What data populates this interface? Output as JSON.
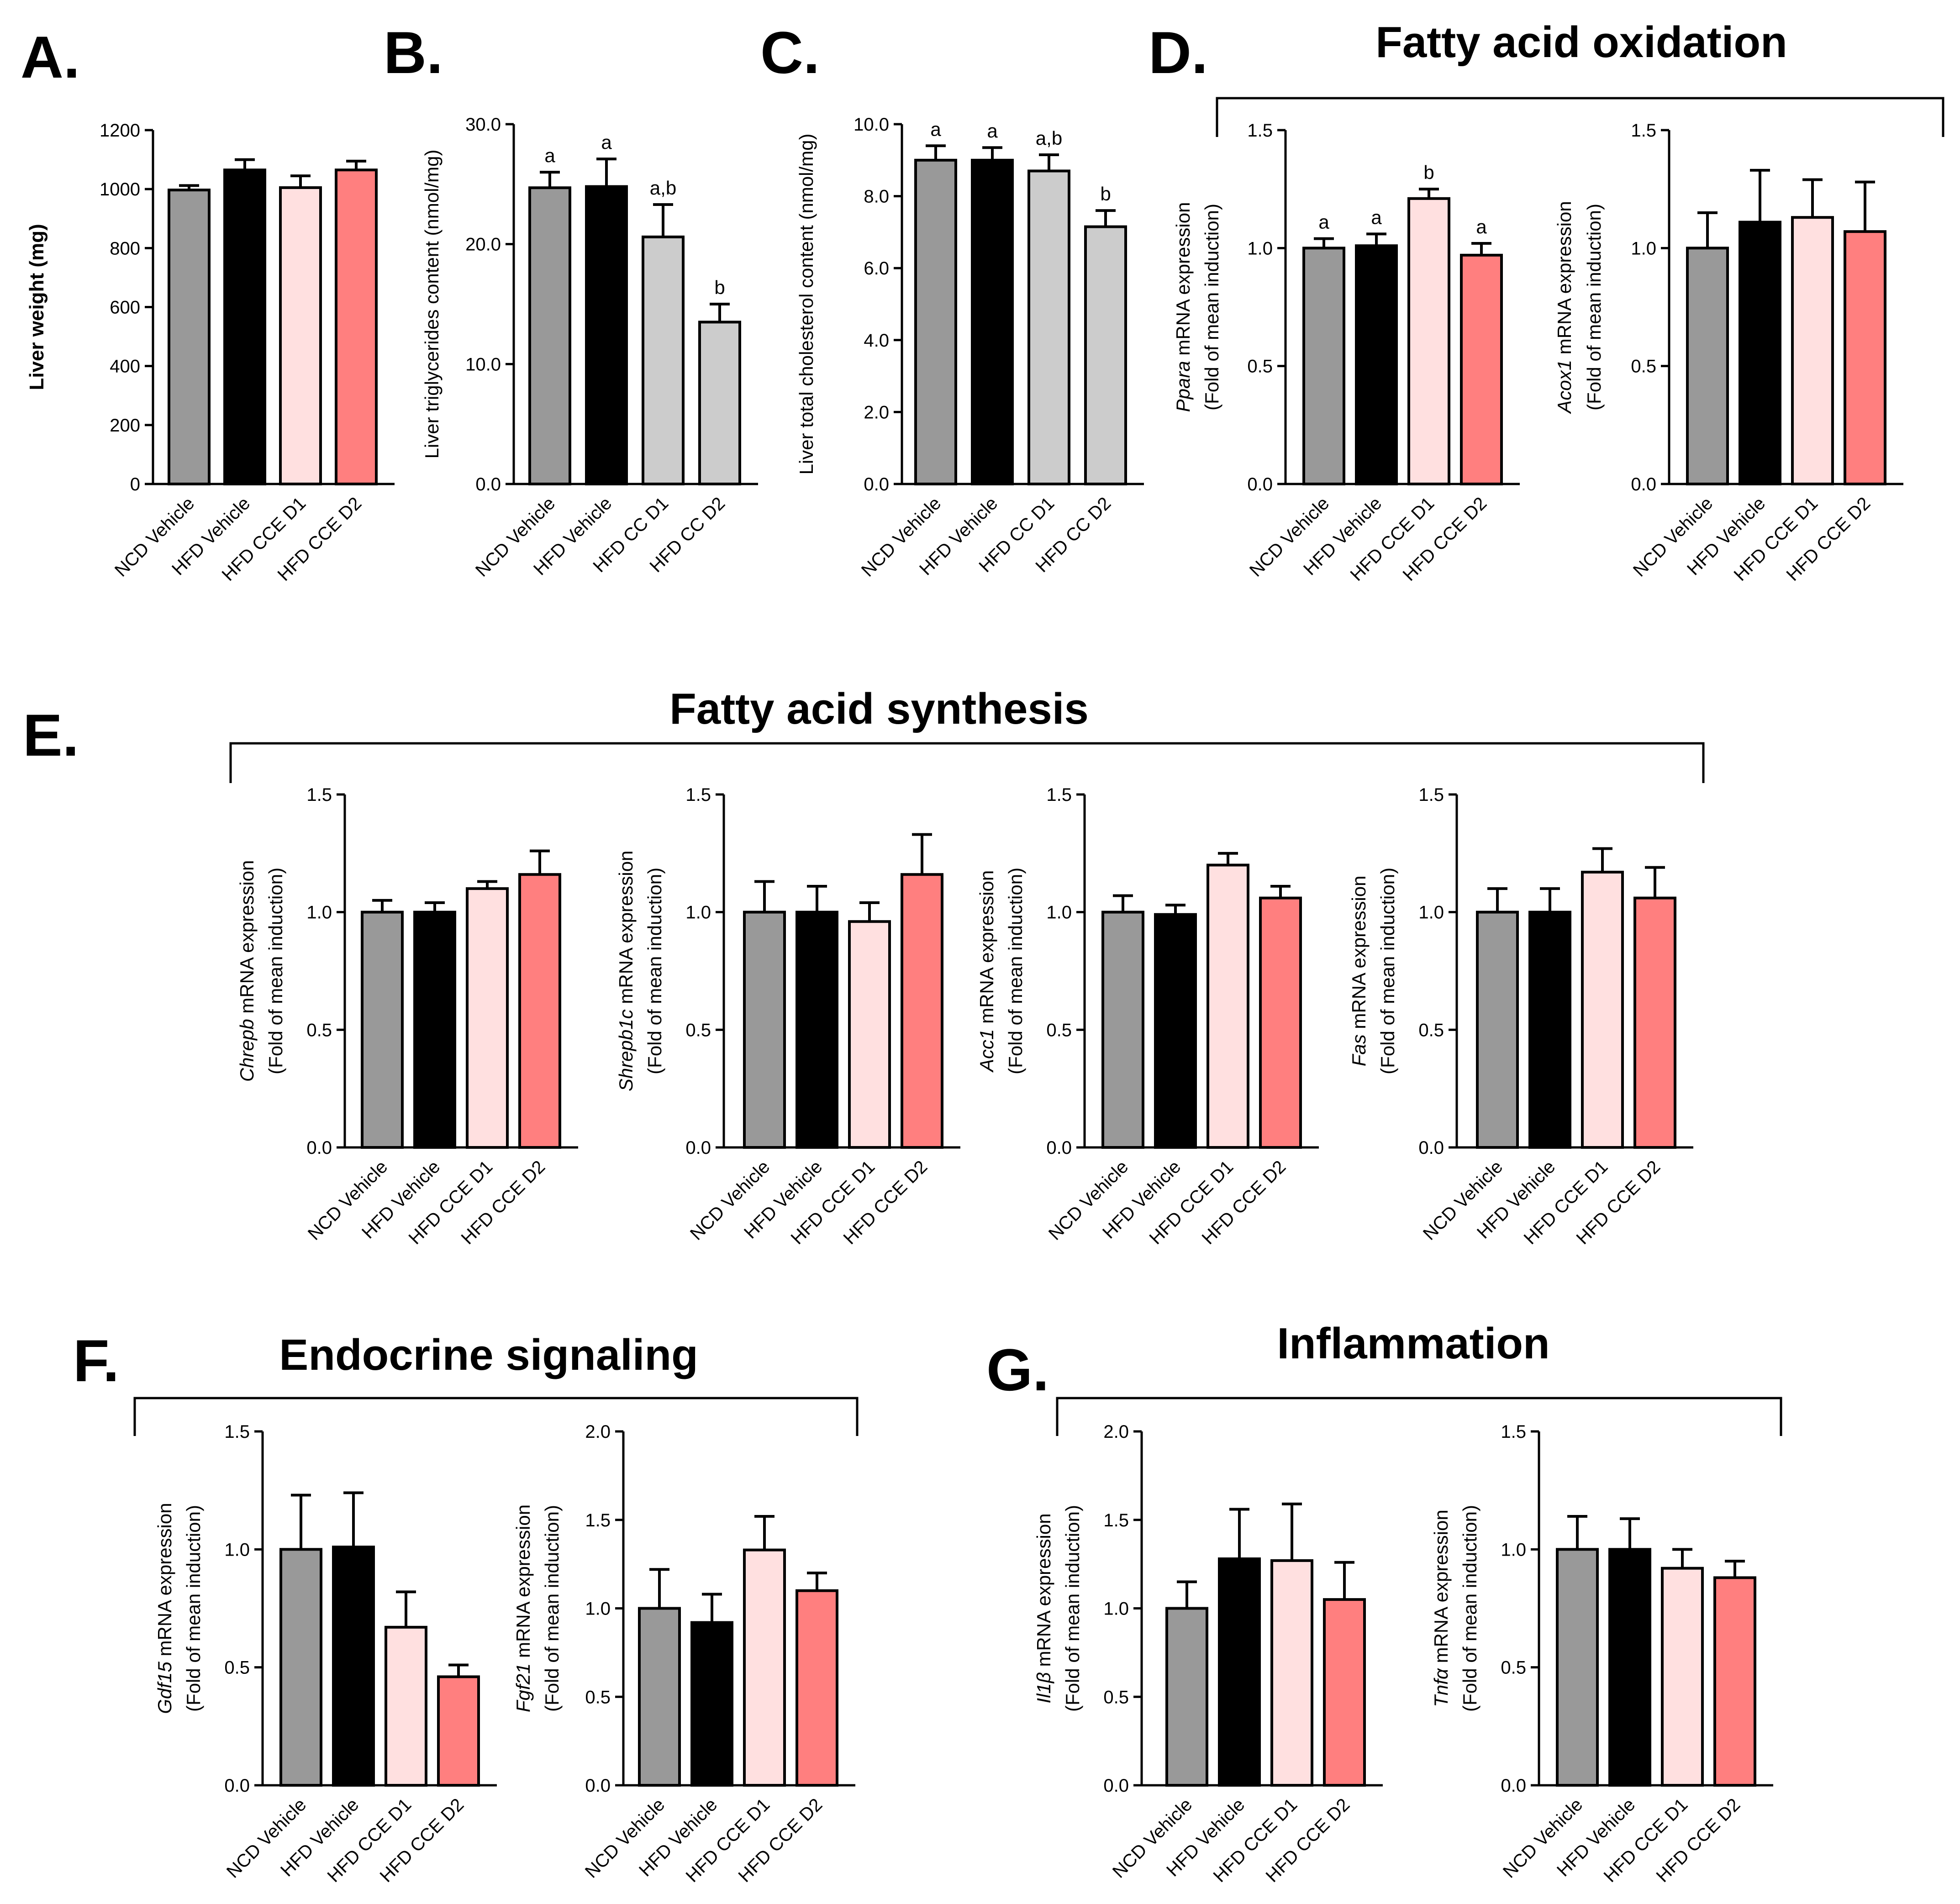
{
  "colors": {
    "NCD Vehicle": "#999999",
    "HFD Vehicle": "#000000",
    "HFD CCE D1": "#ffe0e0",
    "HFD CCE D2": "#ff7f7f"
  },
  "panel_letters": [
    "A.",
    "B.",
    "C.",
    "D.",
    "E.",
    "F.",
    "G."
  ],
  "group_titles": {
    "D": "Fatty acid oxidation",
    "E": "Fatty acid synthesis",
    "F": "Endocrine signaling",
    "G": "Inflammation"
  },
  "y_axis_line2": "(Fold of mean induction)",
  "chart_data": [
    {
      "id": "A",
      "type": "bar",
      "ylabel_main": "Liver weight (mg)",
      "ylabel_style": "bold",
      "categories": [
        "NCD Vehicle",
        "HFD Vehicle",
        "HFD CCE D1",
        "HFD CCE D2"
      ],
      "values": [
        997,
        1065,
        1005,
        1065
      ],
      "errors": [
        15,
        35,
        40,
        30
      ],
      "ylim": [
        0,
        1200
      ],
      "yticks": [
        0,
        200,
        400,
        600,
        800,
        1000,
        1200
      ],
      "ytick_labels": [
        "0",
        "200",
        "400",
        "600",
        "800",
        "1000",
        "1200"
      ],
      "sig_labels": [
        "",
        "",
        "",
        ""
      ]
    },
    {
      "id": "B",
      "type": "bar",
      "ylabel_main": "Liver triglycerides content (nmol/mg)",
      "ylabel_style": "plain",
      "categories": [
        "NCD Vehicle",
        "HFD Vehicle",
        "HFD CC D1",
        "HFD CC D2"
      ],
      "values": [
        24.7,
        24.8,
        20.6,
        13.5
      ],
      "errors": [
        1.3,
        2.3,
        2.7,
        1.5
      ],
      "ylim": [
        0,
        30
      ],
      "yticks": [
        0,
        10,
        20,
        30
      ],
      "ytick_labels": [
        "0.0",
        "10.0",
        "20.0",
        "30.0"
      ],
      "sig_labels": [
        "a",
        "a",
        "a,b",
        "b"
      ]
    },
    {
      "id": "C",
      "type": "bar",
      "ylabel_main": "Liver total cholesterol content (nmol/mg)",
      "ylabel_style": "plain",
      "categories": [
        "NCD Vehicle",
        "HFD Vehicle",
        "HFD CC D1",
        "HFD CC D2"
      ],
      "values": [
        9.0,
        9.0,
        8.7,
        7.15
      ],
      "errors": [
        0.4,
        0.35,
        0.45,
        0.45
      ],
      "ylim": [
        0,
        10
      ],
      "yticks": [
        0,
        2,
        4,
        6,
        8,
        10
      ],
      "ytick_labels": [
        "0.0",
        "2.0",
        "4.0",
        "6.0",
        "8.0",
        "10.0"
      ],
      "sig_labels": [
        "a",
        "a",
        "a,b",
        "b"
      ]
    },
    {
      "id": "D1",
      "type": "bar",
      "gene": "Ppara",
      "ylabel_rest": " mRNA expression",
      "ylabel_style": "gene",
      "categories": [
        "NCD Vehicle",
        "HFD Vehicle",
        "HFD CCE D1",
        "HFD CCE D2"
      ],
      "values": [
        1.0,
        1.01,
        1.21,
        0.97
      ],
      "errors": [
        0.04,
        0.05,
        0.04,
        0.05
      ],
      "ylim": [
        0,
        1.5
      ],
      "yticks": [
        0,
        0.5,
        1.0,
        1.5
      ],
      "ytick_labels": [
        "0.0",
        "0.5",
        "1.0",
        "1.5"
      ],
      "sig_labels": [
        "a",
        "a",
        "b",
        "a"
      ]
    },
    {
      "id": "D2",
      "type": "bar",
      "gene": "Acox1",
      "ylabel_rest": " mRNA expression",
      "ylabel_style": "gene",
      "categories": [
        "NCD Vehicle",
        "HFD Vehicle",
        "HFD CCE D1",
        "HFD CCE D2"
      ],
      "values": [
        1.0,
        1.11,
        1.13,
        1.07
      ],
      "errors": [
        0.15,
        0.22,
        0.16,
        0.21
      ],
      "ylim": [
        0,
        1.5
      ],
      "yticks": [
        0,
        0.5,
        1.0,
        1.5
      ],
      "ytick_labels": [
        "0.0",
        "0.5",
        "1.0",
        "1.5"
      ],
      "sig_labels": [
        "",
        "",
        "",
        ""
      ]
    },
    {
      "id": "E1",
      "type": "bar",
      "gene": "Chrepb",
      "ylabel_rest": " mRNA expression",
      "ylabel_style": "gene",
      "categories": [
        "NCD Vehicle",
        "HFD Vehicle",
        "HFD CCE D1",
        "HFD CCE D2"
      ],
      "values": [
        1.0,
        1.0,
        1.1,
        1.16
      ],
      "errors": [
        0.05,
        0.04,
        0.03,
        0.1
      ],
      "ylim": [
        0,
        1.5
      ],
      "yticks": [
        0,
        0.5,
        1.0,
        1.5
      ],
      "ytick_labels": [
        "0.0",
        "0.5",
        "1.0",
        "1.5"
      ],
      "sig_labels": [
        "",
        "",
        "",
        ""
      ]
    },
    {
      "id": "E2",
      "type": "bar",
      "gene": "Shrepb1c",
      "ylabel_rest": " mRNA expression",
      "ylabel_style": "gene",
      "categories": [
        "NCD Vehicle",
        "HFD Vehicle",
        "HFD CCE D1",
        "HFD CCE D2"
      ],
      "values": [
        1.0,
        1.0,
        0.96,
        1.16
      ],
      "errors": [
        0.13,
        0.11,
        0.08,
        0.17
      ],
      "ylim": [
        0,
        1.5
      ],
      "yticks": [
        0,
        0.5,
        1.0,
        1.5
      ],
      "ytick_labels": [
        "0.0",
        "0.5",
        "1.0",
        "1.5"
      ],
      "sig_labels": [
        "",
        "",
        "",
        ""
      ]
    },
    {
      "id": "E3",
      "type": "bar",
      "gene": "Acc1",
      "ylabel_rest": " mRNA expression",
      "ylabel_style": "gene",
      "categories": [
        "NCD Vehicle",
        "HFD Vehicle",
        "HFD CCE D1",
        "HFD CCE D2"
      ],
      "values": [
        1.0,
        0.99,
        1.2,
        1.06
      ],
      "errors": [
        0.07,
        0.04,
        0.05,
        0.05
      ],
      "ylim": [
        0,
        1.5
      ],
      "yticks": [
        0,
        0.5,
        1.0,
        1.5
      ],
      "ytick_labels": [
        "0.0",
        "0.5",
        "1.0",
        "1.5"
      ],
      "sig_labels": [
        "",
        "",
        "",
        ""
      ]
    },
    {
      "id": "E4",
      "type": "bar",
      "gene": "Fas",
      "ylabel_rest": " mRNA expression",
      "ylabel_style": "gene",
      "categories": [
        "NCD Vehicle",
        "HFD Vehicle",
        "HFD CCE D1",
        "HFD CCE D2"
      ],
      "values": [
        1.0,
        1.0,
        1.17,
        1.06
      ],
      "errors": [
        0.1,
        0.1,
        0.1,
        0.13
      ],
      "ylim": [
        0,
        1.5
      ],
      "yticks": [
        0,
        0.5,
        1.0,
        1.5
      ],
      "ytick_labels": [
        "0.0",
        "0.5",
        "1.0",
        "1.5"
      ],
      "sig_labels": [
        "",
        "",
        "",
        ""
      ]
    },
    {
      "id": "F1",
      "type": "bar",
      "gene": "Gdf15",
      "ylabel_rest": " mRNA expression",
      "ylabel_style": "gene",
      "categories": [
        "NCD Vehicle",
        "HFD Vehicle",
        "HFD CCE D1",
        "HFD CCE D2"
      ],
      "values": [
        1.0,
        1.01,
        0.67,
        0.46
      ],
      "errors": [
        0.23,
        0.23,
        0.15,
        0.05
      ],
      "ylim": [
        0,
        1.5
      ],
      "yticks": [
        0,
        0.5,
        1.0,
        1.5
      ],
      "ytick_labels": [
        "0.0",
        "0.5",
        "1.0",
        "1.5"
      ],
      "sig_labels": [
        "",
        "",
        "",
        ""
      ]
    },
    {
      "id": "F2",
      "type": "bar",
      "gene": "Fgf21",
      "ylabel_rest": " mRNA expression",
      "ylabel_style": "gene",
      "categories": [
        "NCD Vehicle",
        "HFD Vehicle",
        "HFD CCE D1",
        "HFD CCE D2"
      ],
      "values": [
        1.0,
        0.92,
        1.33,
        1.1
      ],
      "errors": [
        0.22,
        0.16,
        0.19,
        0.1
      ],
      "ylim": [
        0,
        2.0
      ],
      "yticks": [
        0,
        0.5,
        1.0,
        1.5,
        2.0
      ],
      "ytick_labels": [
        "0.0",
        "0.5",
        "1.0",
        "1.5",
        "2.0"
      ],
      "sig_labels": [
        "",
        "",
        "",
        ""
      ]
    },
    {
      "id": "G1",
      "type": "bar",
      "gene": "Il1β",
      "ylabel_rest": " mRNA expression",
      "ylabel_style": "gene",
      "categories": [
        "NCD Vehicle",
        "HFD Vehicle",
        "HFD CCE D1",
        "HFD CCE D2"
      ],
      "values": [
        1.0,
        1.28,
        1.27,
        1.05
      ],
      "errors": [
        0.15,
        0.28,
        0.32,
        0.21
      ],
      "ylim": [
        0,
        2.0
      ],
      "yticks": [
        0,
        0.5,
        1.0,
        1.5,
        2.0
      ],
      "ytick_labels": [
        "0.0",
        "0.5",
        "1.0",
        "1.5",
        "2.0"
      ],
      "sig_labels": [
        "",
        "",
        "",
        ""
      ]
    },
    {
      "id": "G2",
      "type": "bar",
      "gene": "Tnfα",
      "ylabel_rest": " mRNA expression",
      "ylabel_style": "gene",
      "categories": [
        "NCD Vehicle",
        "HFD Vehicle",
        "HFD CCE D1",
        "HFD CCE D2"
      ],
      "values": [
        1.0,
        1.0,
        0.92,
        0.88
      ],
      "errors": [
        0.14,
        0.13,
        0.08,
        0.07
      ],
      "ylim": [
        0,
        1.5
      ],
      "yticks": [
        0,
        0.5,
        1.0,
        1.5
      ],
      "ytick_labels": [
        "0.0",
        "0.5",
        "1.0",
        "1.5"
      ],
      "sig_labels": [
        "",
        "",
        "",
        ""
      ]
    }
  ]
}
